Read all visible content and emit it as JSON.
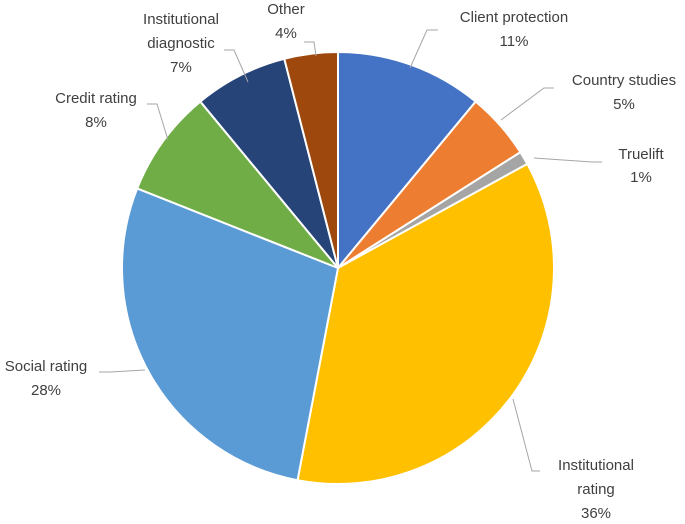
{
  "chart_data": {
    "type": "pie",
    "slices": [
      {
        "name": "Client protection",
        "value": 11,
        "label": "11%",
        "color": "#4472C4"
      },
      {
        "name": "Country studies",
        "value": 5,
        "label": "5%",
        "color": "#ED7D31"
      },
      {
        "name": "Truelift",
        "value": 1,
        "label": "1%",
        "color": "#A5A5A5"
      },
      {
        "name": "Institutional rating",
        "value": 36,
        "label": "36%",
        "color": "#FFC000"
      },
      {
        "name": "Social rating",
        "value": 28,
        "label": "28%",
        "color": "#5B9BD5"
      },
      {
        "name": "Credit rating",
        "value": 8,
        "label": "8%",
        "color": "#70AD47"
      },
      {
        "name": "Institutional diagnostic",
        "value": 7,
        "label": "7%",
        "color": "#264478"
      },
      {
        "name": "Other",
        "value": 4,
        "label": "4%",
        "color": "#9E480E"
      }
    ]
  }
}
